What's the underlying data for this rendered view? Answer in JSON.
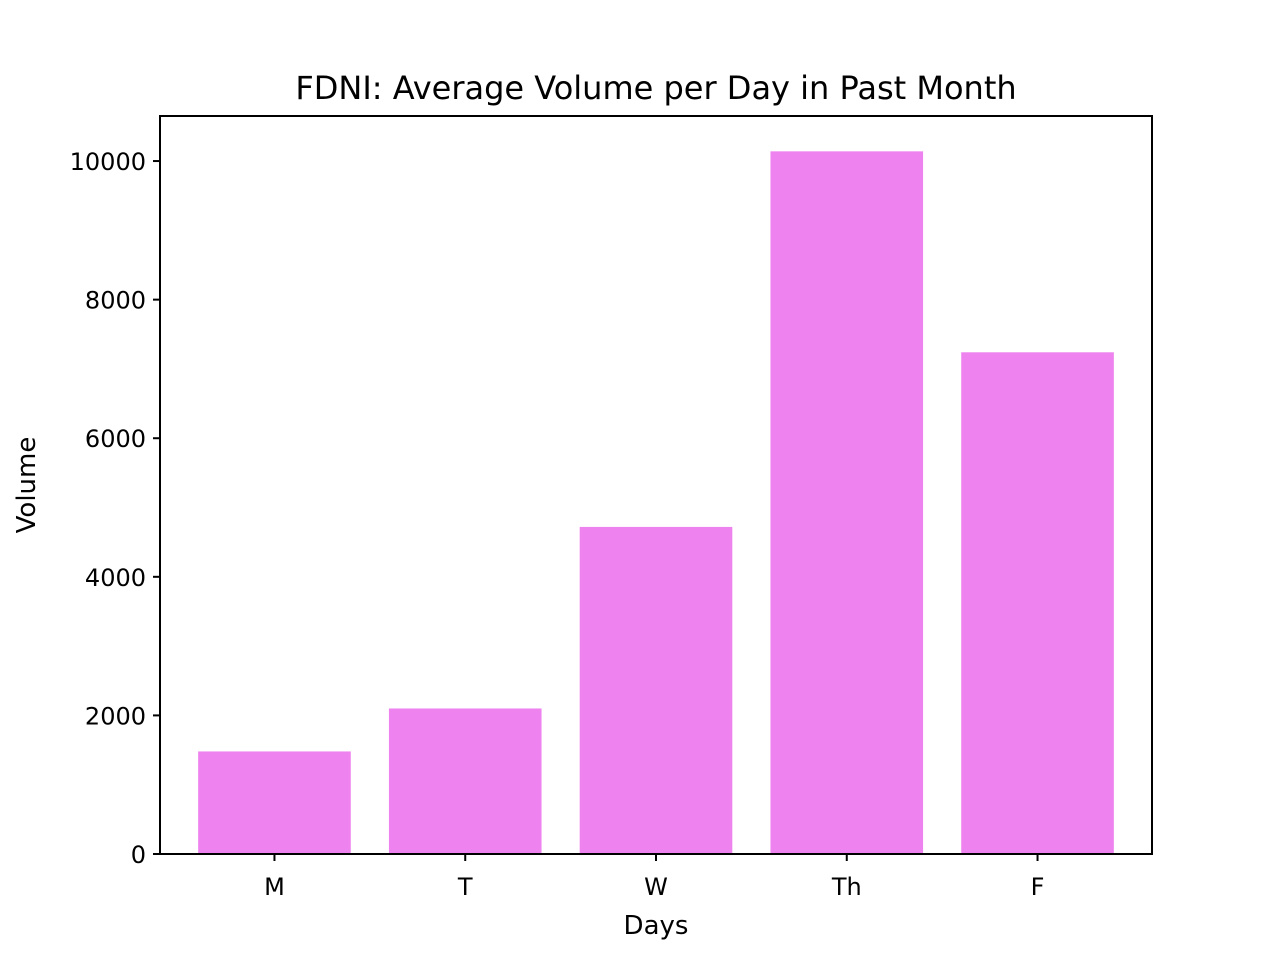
{
  "chart_data": {
    "type": "bar",
    "title": "FDNI: Average Volume per Day in Past Month",
    "xlabel": "Days",
    "ylabel": "Volume",
    "categories": [
      "M",
      "T",
      "W",
      "Th",
      "F"
    ],
    "values": [
      1480,
      2100,
      4720,
      10140,
      7240
    ],
    "ylim": [
      0,
      10650
    ],
    "yticks": [
      0,
      2000,
      4000,
      6000,
      8000,
      10000
    ],
    "ytick_labels": [
      "0",
      "2000",
      "4000",
      "6000",
      "8000",
      "10000"
    ],
    "bar_color": "#EE82EE",
    "grid": false,
    "legend": "none"
  }
}
